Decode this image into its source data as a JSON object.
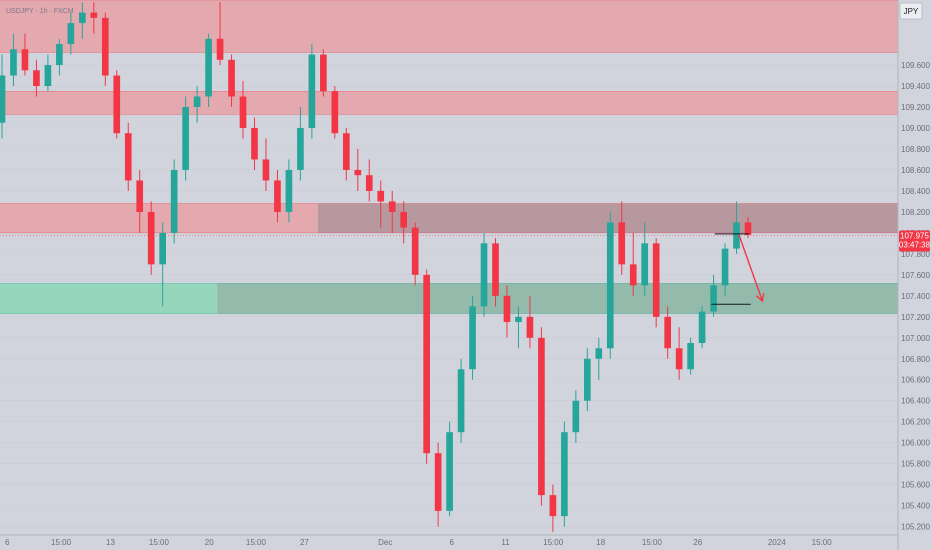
{
  "header": {
    "symbol_label": "USDJPY · 1h · FXCM"
  },
  "currency_button": {
    "label": "JPY"
  },
  "colors": {
    "background": "#d1d4dc",
    "bull": "#26a69a",
    "bear": "#f23645",
    "supply_zone": "#e5a3aa",
    "demand_zone": "#8fd6b8",
    "demand_zone_dark": "#8fb8a6",
    "supply_zone_dark": "#b5959b",
    "price_tag": "#f23645",
    "grid": "#c9ccd4"
  },
  "chart_data": {
    "type": "candlestick",
    "y_axis": {
      "currency": "JPY",
      "range": [
        105.12,
        110.22
      ],
      "ticks": [
        109.6,
        109.4,
        109.2,
        109.0,
        108.8,
        108.6,
        108.4,
        108.2,
        108.0,
        107.8,
        107.6,
        107.4,
        107.2,
        107.0,
        106.8,
        106.6,
        106.4,
        106.2,
        106.0,
        105.8,
        105.6,
        105.4,
        105.2
      ],
      "tick_labels": [
        "109.600",
        "109.400",
        "109.200",
        "109.000",
        "108.800",
        "108.600",
        "108.400",
        "108.200",
        "108.000",
        "107.800",
        "107.600",
        "107.400",
        "107.200",
        "107.000",
        "106.800",
        "106.600",
        "106.400",
        "106.200",
        "106.000",
        "105.800",
        "105.600",
        "105.400",
        "105.200"
      ]
    },
    "x_axis": {
      "range": [
        0,
        100
      ],
      "ticks": [
        {
          "pos": 0.8,
          "label": "6"
        },
        {
          "pos": 6.8,
          "label": "15:00"
        },
        {
          "pos": 12.3,
          "label": "13"
        },
        {
          "pos": 17.7,
          "label": "15:00"
        },
        {
          "pos": 23.3,
          "label": "20"
        },
        {
          "pos": 28.5,
          "label": "15:00"
        },
        {
          "pos": 33.9,
          "label": "27"
        },
        {
          "pos": 42.9,
          "label": "Dec"
        },
        {
          "pos": 50.3,
          "label": "6"
        },
        {
          "pos": 56.3,
          "label": "11"
        },
        {
          "pos": 61.6,
          "label": "15:00"
        },
        {
          "pos": 66.9,
          "label": "18"
        },
        {
          "pos": 72.6,
          "label": "15:00"
        },
        {
          "pos": 77.7,
          "label": "26"
        },
        {
          "pos": 86.5,
          "label": "2024"
        },
        {
          "pos": 91.5,
          "label": "15:00"
        }
      ]
    },
    "current_price": {
      "label": "107.975",
      "value": 107.975,
      "countdown": "03:47:38"
    },
    "zones": [
      {
        "kind": "supply",
        "from": 109.72,
        "to": 110.22,
        "x_start": 0,
        "x_end": 100
      },
      {
        "kind": "supply",
        "from": 109.13,
        "to": 109.35,
        "x_start": 0,
        "x_end": 100
      },
      {
        "kind": "supply",
        "from": 108.0,
        "to": 108.28,
        "x_start": 0,
        "x_end": 35.4,
        "x_split": 35.4
      },
      {
        "kind": "demand",
        "from": 107.23,
        "to": 107.52,
        "x_start": 0,
        "x_end": 24.2,
        "x_split": 24.2
      }
    ],
    "projection": {
      "points": [
        [
          82.3,
          107.98
        ],
        [
          84.9,
          107.35
        ]
      ],
      "lines": [
        [
          [
            79.6,
            107.99
          ],
          [
            83.4,
            107.99
          ]
        ],
        [
          [
            79.2,
            107.32
          ],
          [
            83.6,
            107.32
          ]
        ]
      ]
    },
    "series": [
      {
        "name": "USDJPY",
        "ohlc": [
          [
            109.05,
            109.7,
            108.9,
            109.5
          ],
          [
            109.5,
            109.9,
            109.4,
            109.75
          ],
          [
            109.75,
            109.9,
            109.5,
            109.55
          ],
          [
            109.55,
            109.65,
            109.3,
            109.4
          ],
          [
            109.4,
            109.7,
            109.35,
            109.6
          ],
          [
            109.6,
            109.85,
            109.5,
            109.8
          ],
          [
            109.8,
            110.1,
            109.7,
            110.0
          ],
          [
            110.0,
            110.2,
            109.85,
            110.1
          ],
          [
            110.1,
            110.2,
            109.9,
            110.05
          ],
          [
            110.05,
            110.1,
            109.4,
            109.5
          ],
          [
            109.5,
            109.55,
            108.9,
            108.95
          ],
          [
            108.95,
            109.05,
            108.4,
            108.5
          ],
          [
            108.5,
            108.6,
            108.0,
            108.2
          ],
          [
            108.2,
            108.3,
            107.6,
            107.7
          ],
          [
            107.7,
            108.1,
            107.3,
            108.0
          ],
          [
            108.0,
            108.7,
            107.9,
            108.6
          ],
          [
            108.6,
            109.3,
            108.5,
            109.2
          ],
          [
            109.2,
            109.4,
            109.05,
            109.3
          ],
          [
            109.3,
            109.9,
            109.2,
            109.85
          ],
          [
            109.85,
            110.2,
            109.6,
            109.65
          ],
          [
            109.65,
            109.7,
            109.2,
            109.3
          ],
          [
            109.3,
            109.45,
            108.9,
            109.0
          ],
          [
            109.0,
            109.1,
            108.6,
            108.7
          ],
          [
            108.7,
            108.9,
            108.4,
            108.5
          ],
          [
            108.5,
            108.6,
            108.1,
            108.2
          ],
          [
            108.2,
            108.7,
            108.1,
            108.6
          ],
          [
            108.6,
            109.2,
            108.5,
            109.0
          ],
          [
            109.0,
            109.8,
            108.9,
            109.7
          ],
          [
            109.7,
            109.75,
            109.3,
            109.35
          ],
          [
            109.35,
            109.4,
            108.9,
            108.95
          ],
          [
            108.95,
            109.0,
            108.5,
            108.6
          ],
          [
            108.6,
            108.8,
            108.4,
            108.55
          ],
          [
            108.55,
            108.7,
            108.3,
            108.4
          ],
          [
            108.4,
            108.5,
            108.05,
            108.3
          ],
          [
            108.3,
            108.4,
            108.0,
            108.2
          ],
          [
            108.2,
            108.3,
            107.9,
            108.05
          ],
          [
            108.05,
            108.1,
            107.5,
            107.6
          ],
          [
            107.6,
            107.65,
            105.8,
            105.9
          ],
          [
            105.9,
            106.0,
            105.2,
            105.35
          ],
          [
            105.35,
            106.2,
            105.3,
            106.1
          ],
          [
            106.1,
            106.8,
            106.0,
            106.7
          ],
          [
            106.7,
            107.4,
            106.6,
            107.3
          ],
          [
            107.3,
            108.0,
            107.2,
            107.9
          ],
          [
            107.9,
            107.95,
            107.3,
            107.4
          ],
          [
            107.4,
            107.5,
            107.0,
            107.15
          ],
          [
            107.15,
            107.3,
            106.9,
            107.2
          ],
          [
            107.2,
            107.4,
            106.9,
            107.0
          ],
          [
            107.0,
            107.1,
            105.4,
            105.5
          ],
          [
            105.5,
            105.6,
            105.15,
            105.3
          ],
          [
            105.3,
            106.2,
            105.2,
            106.1
          ],
          [
            106.1,
            106.5,
            106.0,
            106.4
          ],
          [
            106.4,
            106.9,
            106.3,
            106.8
          ],
          [
            106.8,
            107.0,
            106.6,
            106.9
          ],
          [
            106.9,
            108.2,
            106.8,
            108.1
          ],
          [
            108.1,
            108.3,
            107.6,
            107.7
          ],
          [
            107.7,
            108.0,
            107.4,
            107.5
          ],
          [
            107.5,
            108.1,
            107.4,
            107.9
          ],
          [
            107.9,
            107.95,
            107.1,
            107.2
          ],
          [
            107.2,
            107.3,
            106.8,
            106.9
          ],
          [
            106.9,
            107.1,
            106.6,
            106.7
          ],
          [
            106.7,
            107.0,
            106.65,
            106.95
          ],
          [
            106.95,
            107.3,
            106.9,
            107.25
          ],
          [
            107.25,
            107.6,
            107.2,
            107.5
          ],
          [
            107.5,
            107.9,
            107.4,
            107.85
          ],
          [
            107.85,
            108.3,
            107.8,
            108.1
          ],
          [
            108.1,
            108.15,
            107.95,
            107.98
          ]
        ]
      }
    ]
  }
}
